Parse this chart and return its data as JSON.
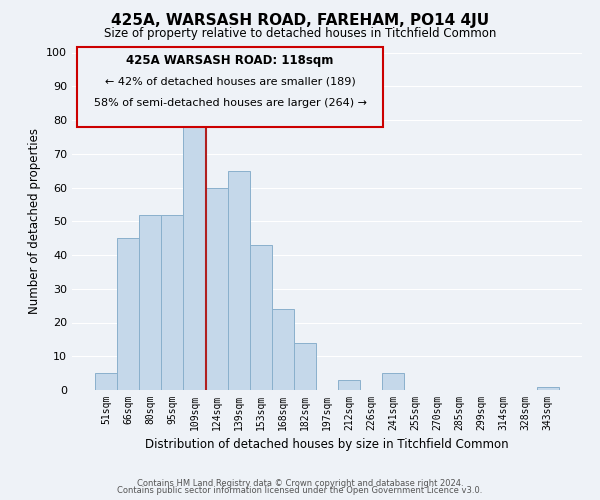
{
  "title": "425A, WARSASH ROAD, FAREHAM, PO14 4JU",
  "subtitle": "Size of property relative to detached houses in Titchfield Common",
  "xlabel": "Distribution of detached houses by size in Titchfield Common",
  "ylabel": "Number of detached properties",
  "bar_labels": [
    "51sqm",
    "66sqm",
    "80sqm",
    "95sqm",
    "109sqm",
    "124sqm",
    "139sqm",
    "153sqm",
    "168sqm",
    "182sqm",
    "197sqm",
    "212sqm",
    "226sqm",
    "241sqm",
    "255sqm",
    "270sqm",
    "285sqm",
    "299sqm",
    "314sqm",
    "328sqm",
    "343sqm"
  ],
  "bar_values": [
    5,
    45,
    52,
    52,
    80,
    60,
    65,
    43,
    24,
    14,
    0,
    3,
    0,
    5,
    0,
    0,
    0,
    0,
    0,
    0,
    1
  ],
  "bar_color": "#c5d8ea",
  "bar_edge_color": "#8ab0cc",
  "reference_line_x": 4.5,
  "reference_line_color": "#b02020",
  "ylim": [
    0,
    100
  ],
  "yticks": [
    0,
    10,
    20,
    30,
    40,
    50,
    60,
    70,
    80,
    90,
    100
  ],
  "annotation_title": "425A WARSASH ROAD: 118sqm",
  "annotation_line1": "← 42% of detached houses are smaller (189)",
  "annotation_line2": "58% of semi-detached houses are larger (264) →",
  "footer_line1": "Contains HM Land Registry data © Crown copyright and database right 2024.",
  "footer_line2": "Contains public sector information licensed under the Open Government Licence v3.0.",
  "background_color": "#eef2f7",
  "grid_color": "#ffffff"
}
